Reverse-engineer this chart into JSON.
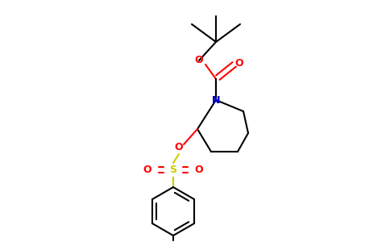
{
  "bg_color": "#ffffff",
  "bond_color": "#000000",
  "N_color": "#0000cc",
  "O_color": "#ff0000",
  "S_color": "#cccc00",
  "lw": 1.5,
  "figsize": [
    4.84,
    3.0
  ],
  "dpi": 100,
  "xlim": [
    0,
    484
  ],
  "ylim": [
    0,
    300
  ]
}
